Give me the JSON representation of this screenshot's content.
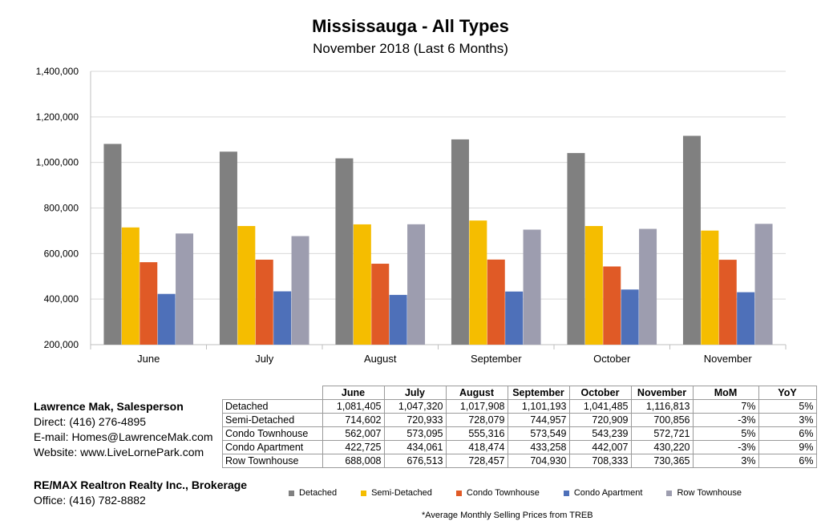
{
  "chart_data": {
    "type": "bar",
    "title": "Mississauga - All Types",
    "subtitle": "November 2018 (Last 6 Months)",
    "categories": [
      "June",
      "July",
      "August",
      "September",
      "October",
      "November"
    ],
    "ylim": [
      200000,
      1400000
    ],
    "yticks": [
      200000,
      400000,
      600000,
      800000,
      1000000,
      1200000,
      1400000
    ],
    "ytick_labels": [
      "200,000",
      "400,000",
      "600,000",
      "800,000",
      "1,000,000",
      "1,200,000",
      "1,400,000"
    ],
    "grid": true,
    "legend_position": "bottom",
    "series": [
      {
        "name": "Detached",
        "color": "#808080",
        "values": [
          1081405,
          1047320,
          1017908,
          1101193,
          1041485,
          1116813
        ]
      },
      {
        "name": "Semi-Detached",
        "color": "#f5bd00",
        "values": [
          714602,
          720933,
          728079,
          744957,
          720909,
          700856
        ]
      },
      {
        "name": "Condo Townhouse",
        "color": "#e05a26",
        "values": [
          562007,
          573095,
          555316,
          573549,
          543239,
          572721
        ]
      },
      {
        "name": "Condo Apartment",
        "color": "#4e70b9",
        "values": [
          422725,
          434061,
          418474,
          433258,
          442007,
          430220
        ]
      },
      {
        "name": "Row Townhouse",
        "color": "#9d9daf",
        "values": [
          688008,
          676513,
          728457,
          704930,
          708333,
          730365
        ]
      }
    ]
  },
  "table": {
    "headers": [
      "June",
      "July",
      "August",
      "September",
      "October",
      "November",
      "MoM",
      "YoY"
    ],
    "rows": [
      {
        "label": "Detached",
        "cells": [
          "1,081,405",
          "1,047,320",
          "1,017,908",
          "1,101,193",
          "1,041,485",
          "1,116,813",
          "7%",
          "5%"
        ]
      },
      {
        "label": "Semi-Detached",
        "cells": [
          "714,602",
          "720,933",
          "728,079",
          "744,957",
          "720,909",
          "700,856",
          "-3%",
          "3%"
        ]
      },
      {
        "label": "Condo Townhouse",
        "cells": [
          "562,007",
          "573,095",
          "555,316",
          "573,549",
          "543,239",
          "572,721",
          "5%",
          "6%"
        ]
      },
      {
        "label": "Condo Apartment",
        "cells": [
          "422,725",
          "434,061",
          "418,474",
          "433,258",
          "442,007",
          "430,220",
          "-3%",
          "9%"
        ]
      },
      {
        "label": "Row Townhouse",
        "cells": [
          "688,008",
          "676,513",
          "728,457",
          "704,930",
          "708,333",
          "730,365",
          "3%",
          "6%"
        ]
      }
    ]
  },
  "contact": {
    "name": "Lawrence Mak, Salesperson",
    "direct": "Direct:  (416) 276-4895",
    "email": "E-mail:  Homes@LawrenceMak.com",
    "website": "Website: www.LiveLornePark.com",
    "brokerage": "RE/MAX Realtron Realty Inc., Brokerage",
    "office": "Office: (416) 782-8882"
  },
  "footnote": "*Average Monthly Selling Prices  from TREB"
}
